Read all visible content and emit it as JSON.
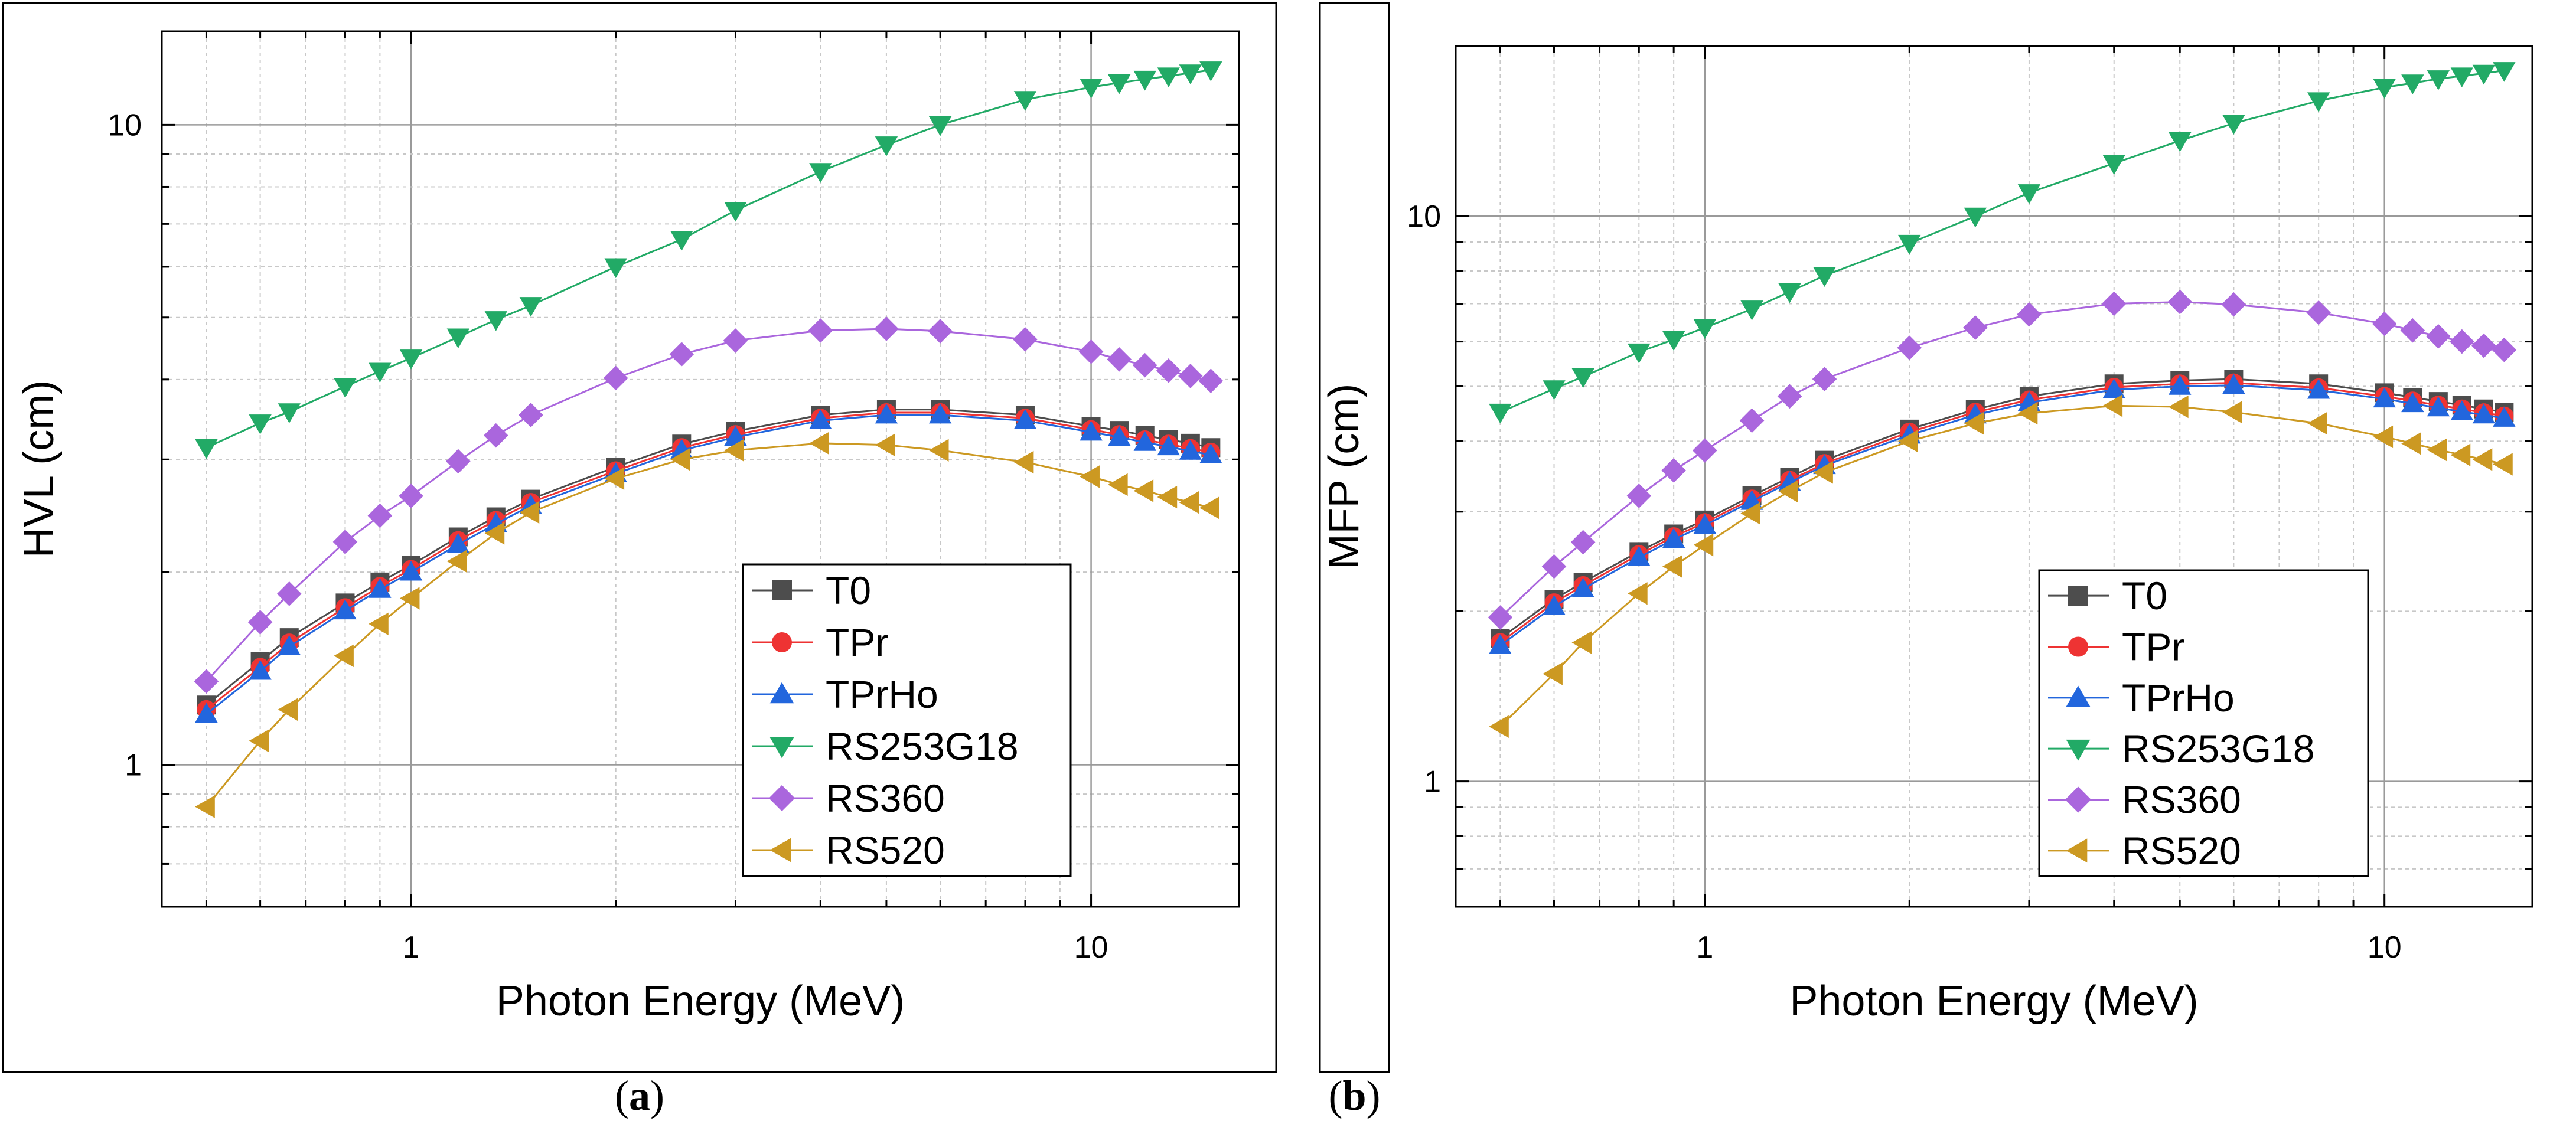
{
  "chart_data": [
    {
      "type": "line",
      "panel_label": "a",
      "xlabel": "Photon Energy (MeV)",
      "ylabel": "HVL (cm)",
      "xscale": "log",
      "yscale": "log",
      "xlim": [
        0.43,
        16.5
      ],
      "ylim": [
        0.6,
        14
      ],
      "x_tick_labels": [
        {
          "value": 1,
          "label": "1"
        },
        {
          "value": 10,
          "label": "10"
        }
      ],
      "y_tick_labels": [
        {
          "value": 1,
          "label": "1"
        },
        {
          "value": 10,
          "label": "10"
        }
      ],
      "grid": true,
      "legend_position": "bottom-right",
      "x": [
        0.5,
        0.6,
        0.662,
        0.8,
        0.9,
        1.0,
        1.173,
        1.333,
        1.5,
        2.0,
        2.5,
        3.0,
        4.0,
        5.0,
        6.0,
        8.0,
        10.0,
        11.0,
        12.0,
        13.0,
        14.0,
        15.0
      ],
      "series": [
        {
          "name": "T0",
          "color": "#4d4d4d",
          "marker": "square",
          "values": [
            1.24,
            1.45,
            1.58,
            1.79,
            1.93,
            2.05,
            2.27,
            2.44,
            2.6,
            2.92,
            3.17,
            3.32,
            3.52,
            3.59,
            3.59,
            3.52,
            3.38,
            3.33,
            3.27,
            3.22,
            3.18,
            3.13
          ]
        },
        {
          "name": "TPr",
          "color": "#ee3333",
          "marker": "circle",
          "values": [
            1.22,
            1.42,
            1.55,
            1.76,
            1.9,
            2.02,
            2.24,
            2.41,
            2.57,
            2.88,
            3.13,
            3.28,
            3.48,
            3.55,
            3.55,
            3.48,
            3.34,
            3.28,
            3.22,
            3.17,
            3.12,
            3.08
          ]
        },
        {
          "name": "TPrHo",
          "color": "#2266dd",
          "marker": "triangle-up",
          "values": [
            1.2,
            1.4,
            1.53,
            1.74,
            1.88,
            2.0,
            2.21,
            2.38,
            2.54,
            2.85,
            3.1,
            3.25,
            3.45,
            3.52,
            3.52,
            3.45,
            3.31,
            3.25,
            3.19,
            3.14,
            3.09,
            3.05
          ]
        },
        {
          "name": "RS253G18",
          "color": "#22aa66",
          "marker": "triangle-down",
          "values": [
            3.13,
            3.42,
            3.56,
            3.9,
            4.12,
            4.32,
            4.66,
            4.96,
            5.22,
            6.0,
            6.62,
            7.35,
            8.45,
            9.3,
            10.0,
            10.95,
            11.45,
            11.63,
            11.78,
            11.92,
            12.05,
            12.18
          ]
        },
        {
          "name": "RS360",
          "color": "#aa66dd",
          "marker": "diamond",
          "values": [
            1.35,
            1.67,
            1.85,
            2.23,
            2.45,
            2.63,
            2.98,
            3.27,
            3.52,
            4.02,
            4.38,
            4.6,
            4.77,
            4.8,
            4.76,
            4.62,
            4.42,
            4.3,
            4.21,
            4.13,
            4.05,
            3.98
          ]
        },
        {
          "name": "RS520",
          "color": "#cc9922",
          "marker": "triangle-left",
          "values": [
            0.86,
            1.09,
            1.22,
            1.48,
            1.66,
            1.82,
            2.08,
            2.3,
            2.48,
            2.8,
            3.0,
            3.1,
            3.18,
            3.16,
            3.1,
            2.97,
            2.82,
            2.74,
            2.68,
            2.62,
            2.57,
            2.52
          ]
        }
      ]
    },
    {
      "type": "line",
      "panel_label": "b",
      "xlabel": "Photon Energy (MeV)",
      "ylabel": "MFP (cm)",
      "xscale": "log",
      "yscale": "log",
      "xlim": [
        0.43,
        16.5
      ],
      "ylim": [
        0.6,
        20
      ],
      "x_tick_labels": [
        {
          "value": 1,
          "label": "1"
        },
        {
          "value": 10,
          "label": "10"
        }
      ],
      "y_tick_labels": [
        {
          "value": 1,
          "label": "1"
        },
        {
          "value": 10,
          "label": "10"
        }
      ],
      "grid": true,
      "legend_position": "bottom-right",
      "x": [
        0.5,
        0.6,
        0.662,
        0.8,
        0.9,
        1.0,
        1.173,
        1.333,
        1.5,
        2.0,
        2.5,
        3.0,
        4.0,
        5.0,
        6.0,
        8.0,
        10.0,
        11.0,
        12.0,
        13.0,
        14.0,
        15.0
      ],
      "series": [
        {
          "name": "T0",
          "color": "#4d4d4d",
          "marker": "square",
          "values": [
            1.79,
            2.1,
            2.25,
            2.55,
            2.74,
            2.9,
            3.2,
            3.45,
            3.7,
            4.2,
            4.55,
            4.8,
            5.05,
            5.12,
            5.15,
            5.05,
            4.87,
            4.78,
            4.7,
            4.63,
            4.56,
            4.5
          ]
        },
        {
          "name": "TPr",
          "color": "#ee3333",
          "marker": "circle",
          "values": [
            1.76,
            2.07,
            2.22,
            2.52,
            2.71,
            2.87,
            3.16,
            3.41,
            3.65,
            4.15,
            4.5,
            4.73,
            4.98,
            5.05,
            5.07,
            4.97,
            4.8,
            4.71,
            4.63,
            4.56,
            4.49,
            4.43
          ]
        },
        {
          "name": "TPrHo",
          "color": "#2266dd",
          "marker": "triangle-up",
          "values": [
            1.74,
            2.04,
            2.19,
            2.49,
            2.68,
            2.84,
            3.13,
            3.38,
            3.62,
            4.1,
            4.45,
            4.68,
            4.93,
            5.0,
            5.02,
            4.92,
            4.75,
            4.66,
            4.58,
            4.51,
            4.45,
            4.39
          ]
        },
        {
          "name": "RS253G18",
          "color": "#22aa66",
          "marker": "triangle-down",
          "values": [
            4.5,
            4.95,
            5.2,
            5.75,
            6.05,
            6.35,
            6.85,
            7.35,
            7.85,
            8.95,
            10.0,
            11.0,
            12.4,
            13.6,
            14.6,
            16.0,
            16.9,
            17.2,
            17.5,
            17.7,
            17.9,
            18.1
          ]
        },
        {
          "name": "RS360",
          "color": "#aa66dd",
          "marker": "diamond",
          "values": [
            1.95,
            2.4,
            2.65,
            3.2,
            3.55,
            3.85,
            4.35,
            4.8,
            5.15,
            5.85,
            6.35,
            6.7,
            7.0,
            7.05,
            6.98,
            6.75,
            6.45,
            6.28,
            6.13,
            6.0,
            5.9,
            5.8
          ]
        },
        {
          "name": "RS520",
          "color": "#cc9922",
          "marker": "triangle-left",
          "values": [
            1.25,
            1.55,
            1.76,
            2.15,
            2.4,
            2.62,
            2.98,
            3.26,
            3.52,
            4.0,
            4.3,
            4.48,
            4.62,
            4.6,
            4.5,
            4.3,
            4.07,
            3.96,
            3.86,
            3.78,
            3.71,
            3.64
          ]
        }
      ]
    }
  ]
}
